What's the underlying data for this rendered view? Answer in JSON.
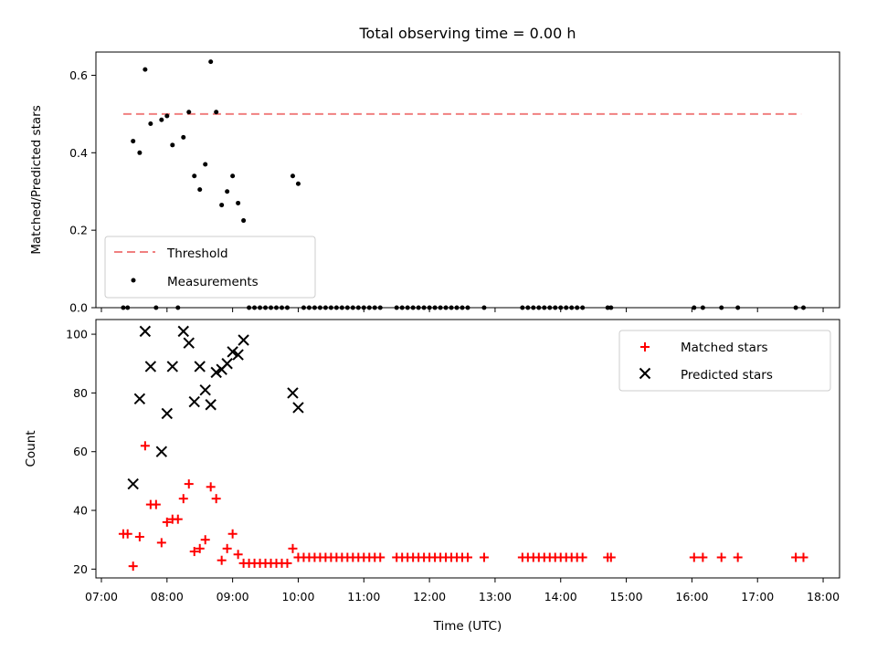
{
  "figure_title": "Total observing time = 0.00 h",
  "chart_data": [
    {
      "type": "scatter",
      "panel": "top",
      "title": "Total observing time = 0.00 h",
      "xlabel": "",
      "ylabel": "Matched/Predicted stars",
      "xlim": [
        "06:55",
        "18:15"
      ],
      "ylim": [
        0,
        0.66
      ],
      "yticks": [
        0.0,
        0.2,
        0.4,
        0.6
      ],
      "ytick_labels": [
        "0.0",
        "0.2",
        "0.4",
        "0.6"
      ],
      "legend": {
        "placement": "lower-left"
      },
      "threshold": {
        "name": "Threshold",
        "value": 0.5,
        "x_range": [
          "07:20",
          "17:40"
        ],
        "color": "#f08080",
        "style": "dashed"
      },
      "series": [
        {
          "name": "Measurements",
          "color": "#000000",
          "marker": "dot",
          "points": [
            [
              "07:20",
              0.0
            ],
            [
              "07:24",
              0.0
            ],
            [
              "07:29",
              0.43
            ],
            [
              "07:35",
              0.4
            ],
            [
              "07:40",
              0.615
            ],
            [
              "07:45",
              0.475
            ],
            [
              "07:50",
              0.0
            ],
            [
              "07:55",
              0.485
            ],
            [
              "08:00",
              0.495
            ],
            [
              "08:05",
              0.42
            ],
            [
              "08:10",
              0.0
            ],
            [
              "08:15",
              0.44
            ],
            [
              "08:20",
              0.505
            ],
            [
              "08:25",
              0.34
            ],
            [
              "08:30",
              0.305
            ],
            [
              "08:35",
              0.37
            ],
            [
              "08:40",
              0.635
            ],
            [
              "08:45",
              0.505
            ],
            [
              "08:50",
              0.265
            ],
            [
              "08:55",
              0.3
            ],
            [
              "09:00",
              0.34
            ],
            [
              "09:05",
              0.27
            ],
            [
              "09:10",
              0.225
            ],
            [
              "09:15",
              0.0
            ],
            [
              "09:20",
              0.0
            ],
            [
              "09:25",
              0.0
            ],
            [
              "09:30",
              0.0
            ],
            [
              "09:35",
              0.0
            ],
            [
              "09:40",
              0.0
            ],
            [
              "09:45",
              0.0
            ],
            [
              "09:50",
              0.0
            ],
            [
              "09:55",
              0.34
            ],
            [
              "10:00",
              0.32
            ],
            [
              "10:05",
              0.0
            ],
            [
              "10:10",
              0.0
            ],
            [
              "10:15",
              0.0
            ],
            [
              "10:20",
              0.0
            ],
            [
              "10:25",
              0.0
            ],
            [
              "10:30",
              0.0
            ],
            [
              "10:35",
              0.0
            ],
            [
              "10:40",
              0.0
            ],
            [
              "10:45",
              0.0
            ],
            [
              "10:50",
              0.0
            ],
            [
              "10:55",
              0.0
            ],
            [
              "11:00",
              0.0
            ],
            [
              "11:05",
              0.0
            ],
            [
              "11:10",
              0.0
            ],
            [
              "11:15",
              0.0
            ],
            [
              "11:30",
              0.0
            ],
            [
              "11:35",
              0.0
            ],
            [
              "11:40",
              0.0
            ],
            [
              "11:45",
              0.0
            ],
            [
              "11:50",
              0.0
            ],
            [
              "11:55",
              0.0
            ],
            [
              "12:00",
              0.0
            ],
            [
              "12:05",
              0.0
            ],
            [
              "12:10",
              0.0
            ],
            [
              "12:15",
              0.0
            ],
            [
              "12:20",
              0.0
            ],
            [
              "12:25",
              0.0
            ],
            [
              "12:30",
              0.0
            ],
            [
              "12:35",
              0.0
            ],
            [
              "12:50",
              0.0
            ],
            [
              "13:25",
              0.0
            ],
            [
              "13:30",
              0.0
            ],
            [
              "13:35",
              0.0
            ],
            [
              "13:40",
              0.0
            ],
            [
              "13:45",
              0.0
            ],
            [
              "13:50",
              0.0
            ],
            [
              "13:55",
              0.0
            ],
            [
              "14:00",
              0.0
            ],
            [
              "14:05",
              0.0
            ],
            [
              "14:10",
              0.0
            ],
            [
              "14:15",
              0.0
            ],
            [
              "14:20",
              0.0
            ],
            [
              "14:43",
              0.0
            ],
            [
              "14:46",
              0.0
            ],
            [
              "16:02",
              0.0
            ],
            [
              "16:10",
              0.0
            ],
            [
              "16:27",
              0.0
            ],
            [
              "16:42",
              0.0
            ],
            [
              "17:35",
              0.0
            ],
            [
              "17:42",
              0.0
            ]
          ]
        }
      ]
    },
    {
      "type": "scatter",
      "panel": "bottom",
      "xlabel": "Time (UTC)",
      "ylabel": "Count",
      "xlim": [
        "06:55",
        "18:15"
      ],
      "ylim": [
        17,
        105
      ],
      "yticks": [
        20,
        40,
        60,
        80,
        100
      ],
      "ytick_labels": [
        "20",
        "40",
        "60",
        "80",
        "100"
      ],
      "xticks": [
        "07:00",
        "08:00",
        "09:00",
        "10:00",
        "11:00",
        "12:00",
        "13:00",
        "14:00",
        "15:00",
        "16:00",
        "17:00",
        "18:00"
      ],
      "legend": {
        "placement": "top-right"
      },
      "series": [
        {
          "name": "Matched stars",
          "color": "#ff0000",
          "marker": "plus",
          "points": [
            [
              "07:20",
              32
            ],
            [
              "07:24",
              32
            ],
            [
              "07:29",
              21
            ],
            [
              "07:35",
              31
            ],
            [
              "07:40",
              62
            ],
            [
              "07:45",
              42
            ],
            [
              "07:50",
              42
            ],
            [
              "07:55",
              29
            ],
            [
              "08:00",
              36
            ],
            [
              "08:05",
              37
            ],
            [
              "08:10",
              37
            ],
            [
              "08:15",
              44
            ],
            [
              "08:20",
              49
            ],
            [
              "08:25",
              26
            ],
            [
              "08:30",
              27
            ],
            [
              "08:35",
              30
            ],
            [
              "08:40",
              48
            ],
            [
              "08:45",
              44
            ],
            [
              "08:50",
              23
            ],
            [
              "08:55",
              27
            ],
            [
              "09:00",
              32
            ],
            [
              "09:05",
              25
            ],
            [
              "09:10",
              22
            ],
            [
              "09:15",
              22
            ],
            [
              "09:20",
              22
            ],
            [
              "09:25",
              22
            ],
            [
              "09:30",
              22
            ],
            [
              "09:35",
              22
            ],
            [
              "09:40",
              22
            ],
            [
              "09:45",
              22
            ],
            [
              "09:50",
              22
            ],
            [
              "09:55",
              27
            ],
            [
              "10:00",
              24
            ],
            [
              "10:05",
              24
            ],
            [
              "10:10",
              24
            ],
            [
              "10:15",
              24
            ],
            [
              "10:20",
              24
            ],
            [
              "10:25",
              24
            ],
            [
              "10:30",
              24
            ],
            [
              "10:35",
              24
            ],
            [
              "10:40",
              24
            ],
            [
              "10:45",
              24
            ],
            [
              "10:50",
              24
            ],
            [
              "10:55",
              24
            ],
            [
              "11:00",
              24
            ],
            [
              "11:05",
              24
            ],
            [
              "11:10",
              24
            ],
            [
              "11:15",
              24
            ],
            [
              "11:30",
              24
            ],
            [
              "11:35",
              24
            ],
            [
              "11:40",
              24
            ],
            [
              "11:45",
              24
            ],
            [
              "11:50",
              24
            ],
            [
              "11:55",
              24
            ],
            [
              "12:00",
              24
            ],
            [
              "12:05",
              24
            ],
            [
              "12:10",
              24
            ],
            [
              "12:15",
              24
            ],
            [
              "12:20",
              24
            ],
            [
              "12:25",
              24
            ],
            [
              "12:30",
              24
            ],
            [
              "12:35",
              24
            ],
            [
              "12:50",
              24
            ],
            [
              "13:25",
              24
            ],
            [
              "13:30",
              24
            ],
            [
              "13:35",
              24
            ],
            [
              "13:40",
              24
            ],
            [
              "13:45",
              24
            ],
            [
              "13:50",
              24
            ],
            [
              "13:55",
              24
            ],
            [
              "14:00",
              24
            ],
            [
              "14:05",
              24
            ],
            [
              "14:10",
              24
            ],
            [
              "14:15",
              24
            ],
            [
              "14:20",
              24
            ],
            [
              "14:43",
              24
            ],
            [
              "14:46",
              24
            ],
            [
              "16:02",
              24
            ],
            [
              "16:10",
              24
            ],
            [
              "16:27",
              24
            ],
            [
              "16:42",
              24
            ],
            [
              "17:35",
              24
            ],
            [
              "17:42",
              24
            ]
          ]
        },
        {
          "name": "Predicted stars",
          "color": "#000000",
          "marker": "x",
          "points": [
            [
              "07:29",
              49
            ],
            [
              "07:35",
              78
            ],
            [
              "07:40",
              101
            ],
            [
              "07:45",
              89
            ],
            [
              "07:55",
              60
            ],
            [
              "08:00",
              73
            ],
            [
              "08:05",
              89
            ],
            [
              "08:15",
              101
            ],
            [
              "08:20",
              97
            ],
            [
              "08:25",
              77
            ],
            [
              "08:30",
              89
            ],
            [
              "08:35",
              81
            ],
            [
              "08:40",
              76
            ],
            [
              "08:45",
              87
            ],
            [
              "08:50",
              88
            ],
            [
              "08:55",
              90
            ],
            [
              "09:00",
              94
            ],
            [
              "09:05",
              93
            ],
            [
              "09:10",
              98
            ],
            [
              "09:55",
              80
            ],
            [
              "10:00",
              75
            ]
          ]
        }
      ]
    }
  ]
}
